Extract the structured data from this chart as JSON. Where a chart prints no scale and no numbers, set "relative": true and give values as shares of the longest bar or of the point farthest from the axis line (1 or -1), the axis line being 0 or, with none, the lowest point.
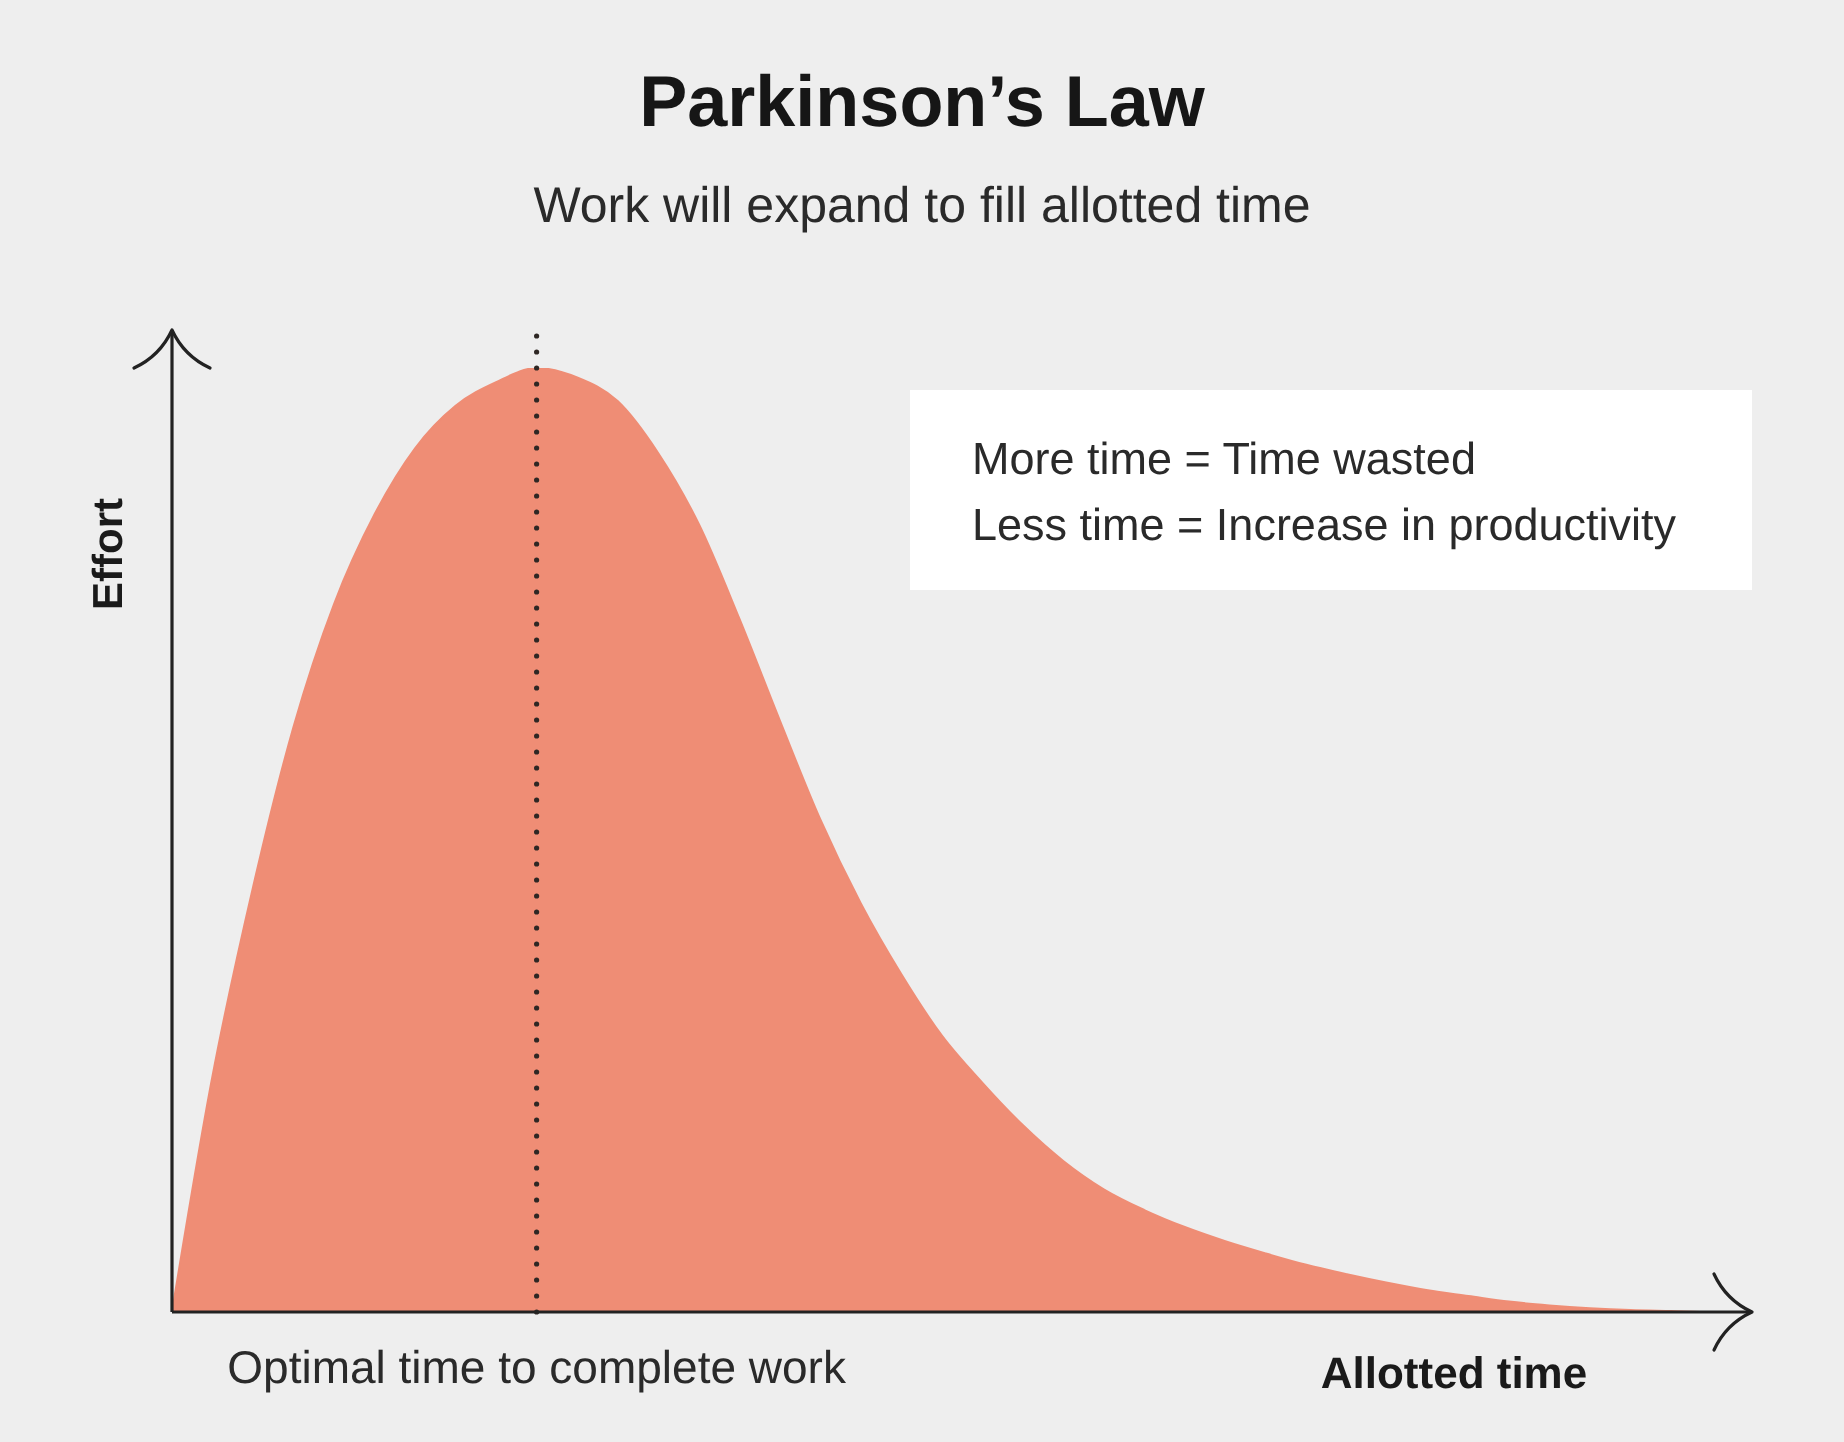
{
  "chart_data": {
    "type": "area",
    "title": "Parkinson’s Law",
    "subtitle": "Work will expand to fill allotted time",
    "xlabel": "Allotted time",
    "ylabel": "Effort",
    "relative": true,
    "categories": [
      null,
      null,
      null,
      null,
      null,
      null,
      null,
      null,
      null,
      null,
      null,
      null,
      null,
      null,
      null,
      null,
      null,
      null,
      null,
      null,
      null,
      null,
      null,
      null,
      null,
      null,
      null,
      null,
      null,
      null,
      null,
      null,
      null,
      null,
      null,
      null,
      null,
      null,
      null,
      null
    ],
    "values": [
      0,
      0.25,
      0.45,
      0.62,
      0.75,
      0.845,
      0.915,
      0.96,
      0.985,
      1,
      0.99,
      0.965,
      0.91,
      0.835,
      0.735,
      0.627,
      0.522,
      0.433,
      0.358,
      0.293,
      0.243,
      0.198,
      0.16,
      0.13,
      0.108,
      0.09,
      0.075,
      0.062,
      0.05,
      0.04,
      0.031,
      0.023,
      0.017,
      0.011,
      0.007,
      0.004,
      0.002,
      0.001,
      0,
      0
    ],
    "color": "#ef8d75",
    "annotations": [
      "Optimal time to complete work",
      "More time = Time wasted",
      "Less time = Increase in productivity"
    ]
  }
}
